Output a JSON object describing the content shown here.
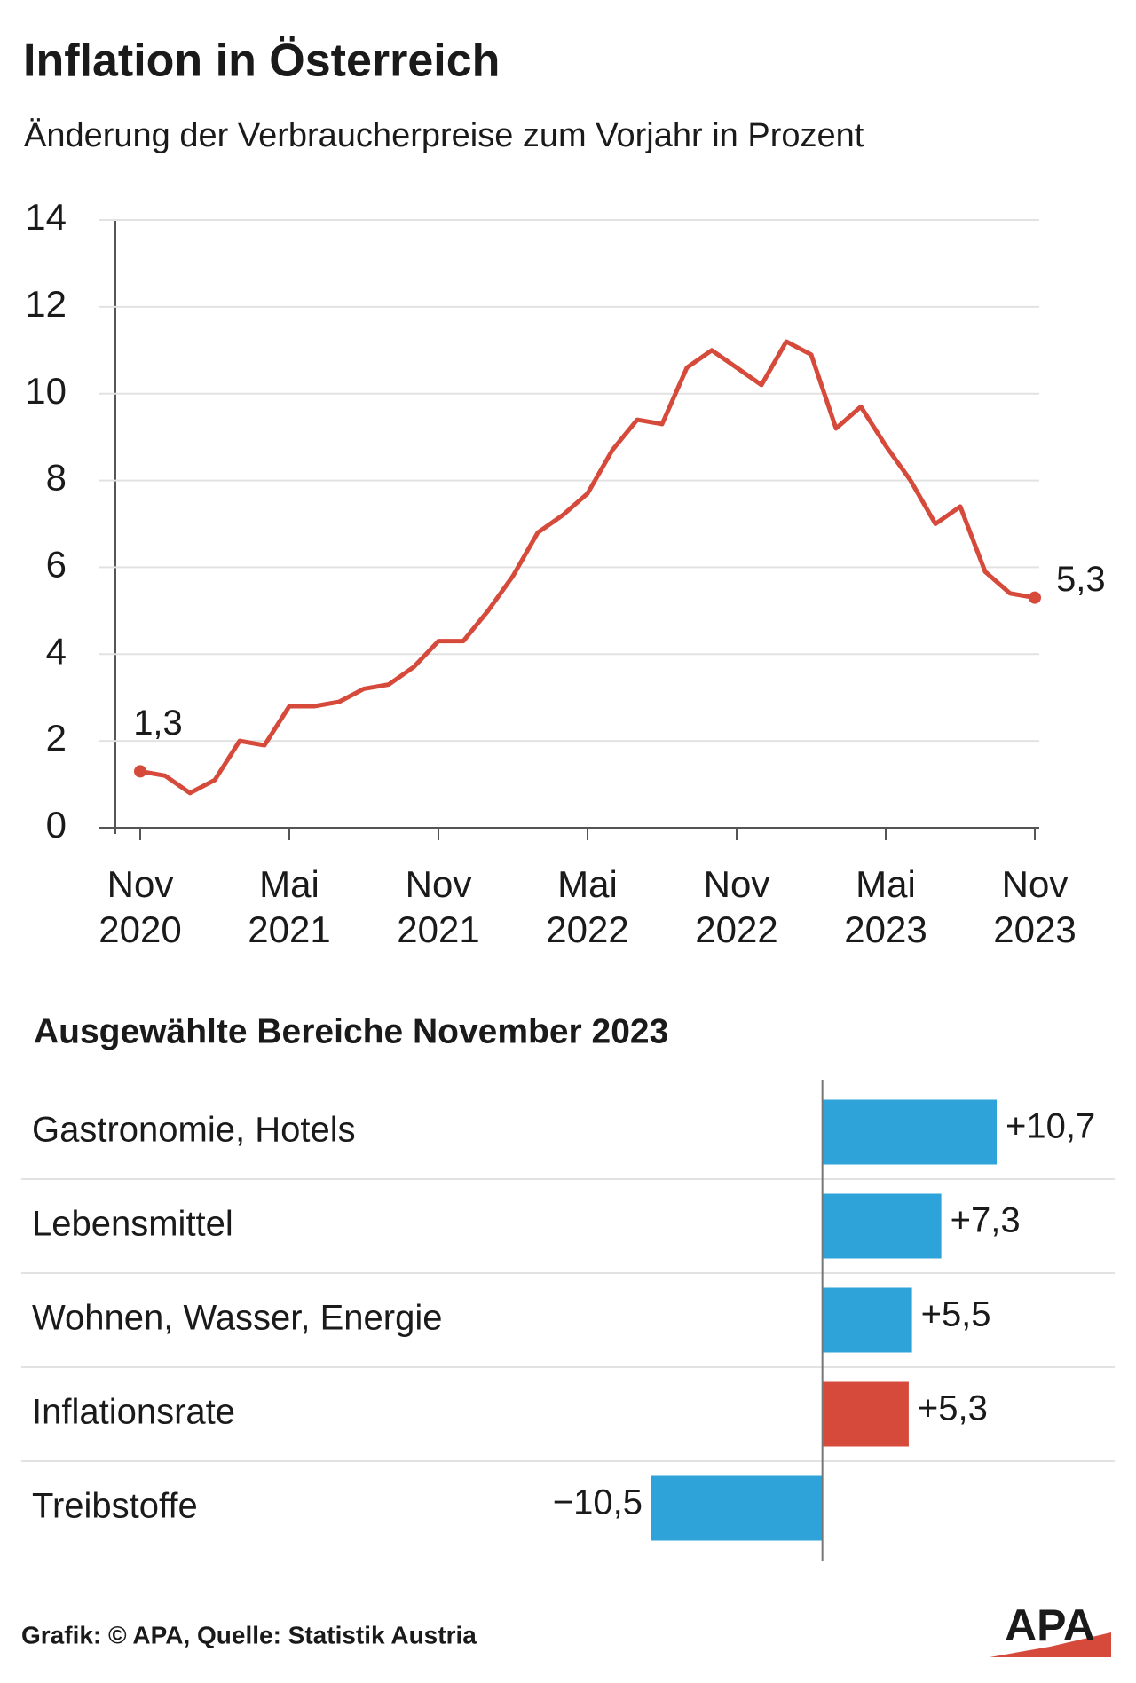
{
  "chart_data": [
    {
      "type": "line",
      "title": "Inflation in Österreich",
      "subtitle": "Änderung der Verbraucherpreise zum Vorjahr in Prozent",
      "categories": [
        "Nov 2020",
        null,
        null,
        null,
        null,
        null,
        "Mai 2021",
        null,
        null,
        null,
        null,
        null,
        "Nov 2021",
        null,
        null,
        null,
        null,
        null,
        "Mai 2022",
        null,
        null,
        null,
        null,
        null,
        "Nov 2022",
        null,
        null,
        null,
        null,
        null,
        "Mai 2023",
        null,
        null,
        null,
        null,
        null,
        "Nov 2023"
      ],
      "series": [
        {
          "name": "Inflationsrate",
          "color": "#d64a3b",
          "values": [
            1.3,
            1.2,
            0.8,
            1.1,
            2.0,
            1.9,
            2.8,
            2.8,
            2.9,
            3.2,
            3.3,
            3.7,
            4.3,
            4.3,
            5.0,
            5.8,
            6.8,
            7.2,
            7.7,
            8.7,
            9.4,
            9.3,
            10.6,
            11.0,
            10.6,
            10.2,
            11.2,
            10.9,
            9.2,
            9.7,
            8.8,
            8.0,
            7.0,
            7.4,
            5.9,
            5.4,
            5.3
          ],
          "value_labels": [
            "1,3",
            null,
            null,
            null,
            null,
            null,
            null,
            null,
            null,
            null,
            null,
            null,
            null,
            null,
            null,
            null,
            null,
            null,
            null,
            null,
            null,
            null,
            null,
            null,
            null,
            null,
            null,
            null,
            null,
            null,
            null,
            null,
            null,
            null,
            null,
            null,
            "5,3"
          ]
        }
      ],
      "ylim": [
        0,
        14
      ],
      "yticks": [
        0,
        2,
        4,
        6,
        8,
        10,
        12,
        14
      ],
      "grid": true
    },
    {
      "type": "hbar",
      "title": "Ausgewählte Bereiche November 2023",
      "categories": [
        "Gastronomie, Hotels",
        "Lebensmittel",
        "Wohnen, Wasser, Energie",
        "Inflationsrate",
        "Treibstoffe"
      ],
      "values": [
        10.7,
        7.3,
        5.5,
        5.3,
        -10.5
      ],
      "value_labels": [
        "+10,7",
        "+7,3",
        "+5,5",
        "+5,3",
        "−10,5"
      ],
      "colors": [
        "#2ea3da",
        "#2ea3da",
        "#2ea3da",
        "#d64a3b",
        "#2ea3da"
      ],
      "xlim": [
        -10.5,
        10.7
      ]
    }
  ],
  "footer": {
    "source": "Grafik: © APA, Quelle: Statistik Austria",
    "logo": "APA"
  }
}
